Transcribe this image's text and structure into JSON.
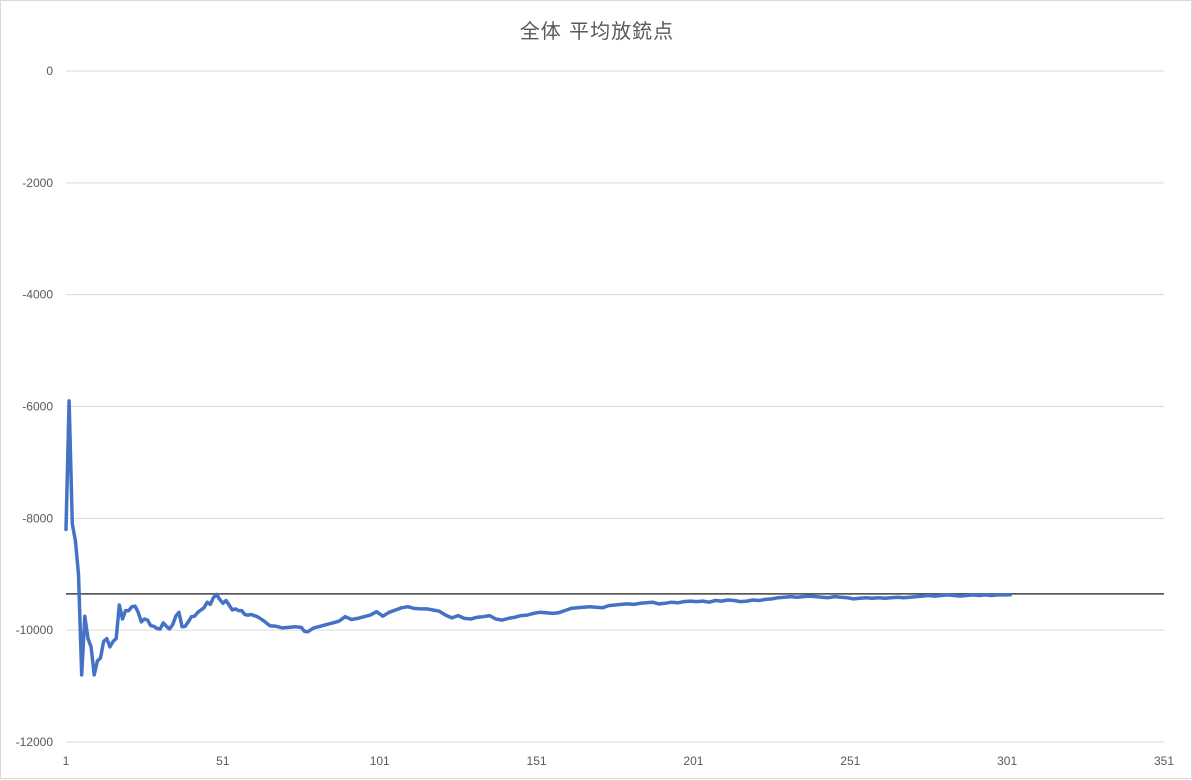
{
  "chart_data": {
    "type": "line",
    "title": "全体 平均放銃点",
    "xlabel": "",
    "ylabel": "",
    "xlim": [
      1,
      351
    ],
    "ylim": [
      -12000,
      0
    ],
    "x_ticks": [
      1,
      51,
      101,
      151,
      201,
      251,
      301,
      351
    ],
    "y_ticks": [
      0,
      -2000,
      -4000,
      -6000,
      -8000,
      -10000,
      -12000
    ],
    "grid": true,
    "legend": "none",
    "reference_line": {
      "y": -9350,
      "color": "#404040"
    },
    "series": [
      {
        "color": "#4472C4",
        "points": [
          [
            1,
            -8200
          ],
          [
            2,
            -5900
          ],
          [
            3,
            -8100
          ],
          [
            4,
            -8400
          ],
          [
            5,
            -9000
          ],
          [
            6,
            -10800
          ],
          [
            7,
            -9750
          ],
          [
            8,
            -10150
          ],
          [
            9,
            -10300
          ],
          [
            10,
            -10800
          ],
          [
            11,
            -10550
          ],
          [
            12,
            -10500
          ],
          [
            13,
            -10200
          ],
          [
            14,
            -10150
          ],
          [
            15,
            -10300
          ],
          [
            16,
            -10200
          ],
          [
            17,
            -10150
          ],
          [
            18,
            -9550
          ],
          [
            19,
            -9800
          ],
          [
            20,
            -9650
          ],
          [
            21,
            -9650
          ],
          [
            22,
            -9580
          ],
          [
            23,
            -9570
          ],
          [
            24,
            -9680
          ],
          [
            25,
            -9850
          ],
          [
            26,
            -9800
          ],
          [
            27,
            -9820
          ],
          [
            28,
            -9920
          ],
          [
            29,
            -9930
          ],
          [
            30,
            -9970
          ],
          [
            31,
            -9980
          ],
          [
            32,
            -9870
          ],
          [
            33,
            -9930
          ],
          [
            34,
            -9980
          ],
          [
            35,
            -9900
          ],
          [
            36,
            -9750
          ],
          [
            37,
            -9680
          ],
          [
            38,
            -9940
          ],
          [
            39,
            -9930
          ],
          [
            40,
            -9850
          ],
          [
            41,
            -9760
          ],
          [
            42,
            -9750
          ],
          [
            43,
            -9680
          ],
          [
            44,
            -9640
          ],
          [
            45,
            -9600
          ],
          [
            46,
            -9500
          ],
          [
            47,
            -9540
          ],
          [
            48,
            -9420
          ],
          [
            49,
            -9360
          ],
          [
            50,
            -9450
          ],
          [
            51,
            -9520
          ],
          [
            52,
            -9470
          ],
          [
            53,
            -9550
          ],
          [
            54,
            -9640
          ],
          [
            55,
            -9620
          ],
          [
            56,
            -9650
          ],
          [
            57,
            -9650
          ],
          [
            58,
            -9720
          ],
          [
            59,
            -9730
          ],
          [
            60,
            -9720
          ],
          [
            62,
            -9760
          ],
          [
            64,
            -9830
          ],
          [
            66,
            -9920
          ],
          [
            68,
            -9930
          ],
          [
            70,
            -9960
          ],
          [
            72,
            -9950
          ],
          [
            74,
            -9940
          ],
          [
            76,
            -9950
          ],
          [
            77,
            -10020
          ],
          [
            78,
            -10030
          ],
          [
            80,
            -9960
          ],
          [
            82,
            -9930
          ],
          [
            84,
            -9900
          ],
          [
            86,
            -9870
          ],
          [
            88,
            -9840
          ],
          [
            90,
            -9760
          ],
          [
            92,
            -9810
          ],
          [
            94,
            -9790
          ],
          [
            96,
            -9760
          ],
          [
            98,
            -9730
          ],
          [
            100,
            -9670
          ],
          [
            102,
            -9750
          ],
          [
            104,
            -9680
          ],
          [
            106,
            -9640
          ],
          [
            108,
            -9600
          ],
          [
            110,
            -9580
          ],
          [
            112,
            -9610
          ],
          [
            114,
            -9620
          ],
          [
            116,
            -9620
          ],
          [
            118,
            -9640
          ],
          [
            120,
            -9660
          ],
          [
            122,
            -9730
          ],
          [
            124,
            -9780
          ],
          [
            126,
            -9740
          ],
          [
            128,
            -9790
          ],
          [
            130,
            -9800
          ],
          [
            132,
            -9770
          ],
          [
            134,
            -9760
          ],
          [
            136,
            -9740
          ],
          [
            138,
            -9800
          ],
          [
            140,
            -9820
          ],
          [
            142,
            -9790
          ],
          [
            144,
            -9770
          ],
          [
            146,
            -9740
          ],
          [
            148,
            -9730
          ],
          [
            150,
            -9700
          ],
          [
            152,
            -9680
          ],
          [
            154,
            -9690
          ],
          [
            156,
            -9700
          ],
          [
            158,
            -9690
          ],
          [
            160,
            -9650
          ],
          [
            162,
            -9610
          ],
          [
            164,
            -9600
          ],
          [
            166,
            -9590
          ],
          [
            168,
            -9580
          ],
          [
            170,
            -9590
          ],
          [
            172,
            -9600
          ],
          [
            174,
            -9560
          ],
          [
            176,
            -9550
          ],
          [
            178,
            -9540
          ],
          [
            180,
            -9530
          ],
          [
            182,
            -9540
          ],
          [
            184,
            -9520
          ],
          [
            186,
            -9510
          ],
          [
            188,
            -9500
          ],
          [
            190,
            -9530
          ],
          [
            192,
            -9520
          ],
          [
            194,
            -9500
          ],
          [
            196,
            -9510
          ],
          [
            198,
            -9490
          ],
          [
            200,
            -9480
          ],
          [
            202,
            -9490
          ],
          [
            204,
            -9480
          ],
          [
            206,
            -9500
          ],
          [
            208,
            -9470
          ],
          [
            210,
            -9480
          ],
          [
            212,
            -9460
          ],
          [
            214,
            -9470
          ],
          [
            216,
            -9490
          ],
          [
            218,
            -9480
          ],
          [
            220,
            -9460
          ],
          [
            222,
            -9470
          ],
          [
            224,
            -9450
          ],
          [
            226,
            -9440
          ],
          [
            228,
            -9420
          ],
          [
            230,
            -9410
          ],
          [
            232,
            -9400
          ],
          [
            234,
            -9410
          ],
          [
            236,
            -9400
          ],
          [
            238,
            -9390
          ],
          [
            240,
            -9400
          ],
          [
            242,
            -9410
          ],
          [
            244,
            -9420
          ],
          [
            246,
            -9400
          ],
          [
            248,
            -9410
          ],
          [
            250,
            -9420
          ],
          [
            252,
            -9440
          ],
          [
            254,
            -9430
          ],
          [
            256,
            -9420
          ],
          [
            258,
            -9430
          ],
          [
            260,
            -9420
          ],
          [
            262,
            -9430
          ],
          [
            264,
            -9420
          ],
          [
            266,
            -9410
          ],
          [
            268,
            -9420
          ],
          [
            270,
            -9410
          ],
          [
            272,
            -9400
          ],
          [
            274,
            -9390
          ],
          [
            276,
            -9380
          ],
          [
            278,
            -9390
          ],
          [
            280,
            -9380
          ],
          [
            282,
            -9370
          ],
          [
            284,
            -9380
          ],
          [
            286,
            -9390
          ],
          [
            288,
            -9380
          ],
          [
            290,
            -9370
          ],
          [
            292,
            -9380
          ],
          [
            294,
            -9370
          ],
          [
            296,
            -9380
          ],
          [
            298,
            -9370
          ],
          [
            300,
            -9370
          ],
          [
            302,
            -9365
          ]
        ]
      }
    ]
  }
}
